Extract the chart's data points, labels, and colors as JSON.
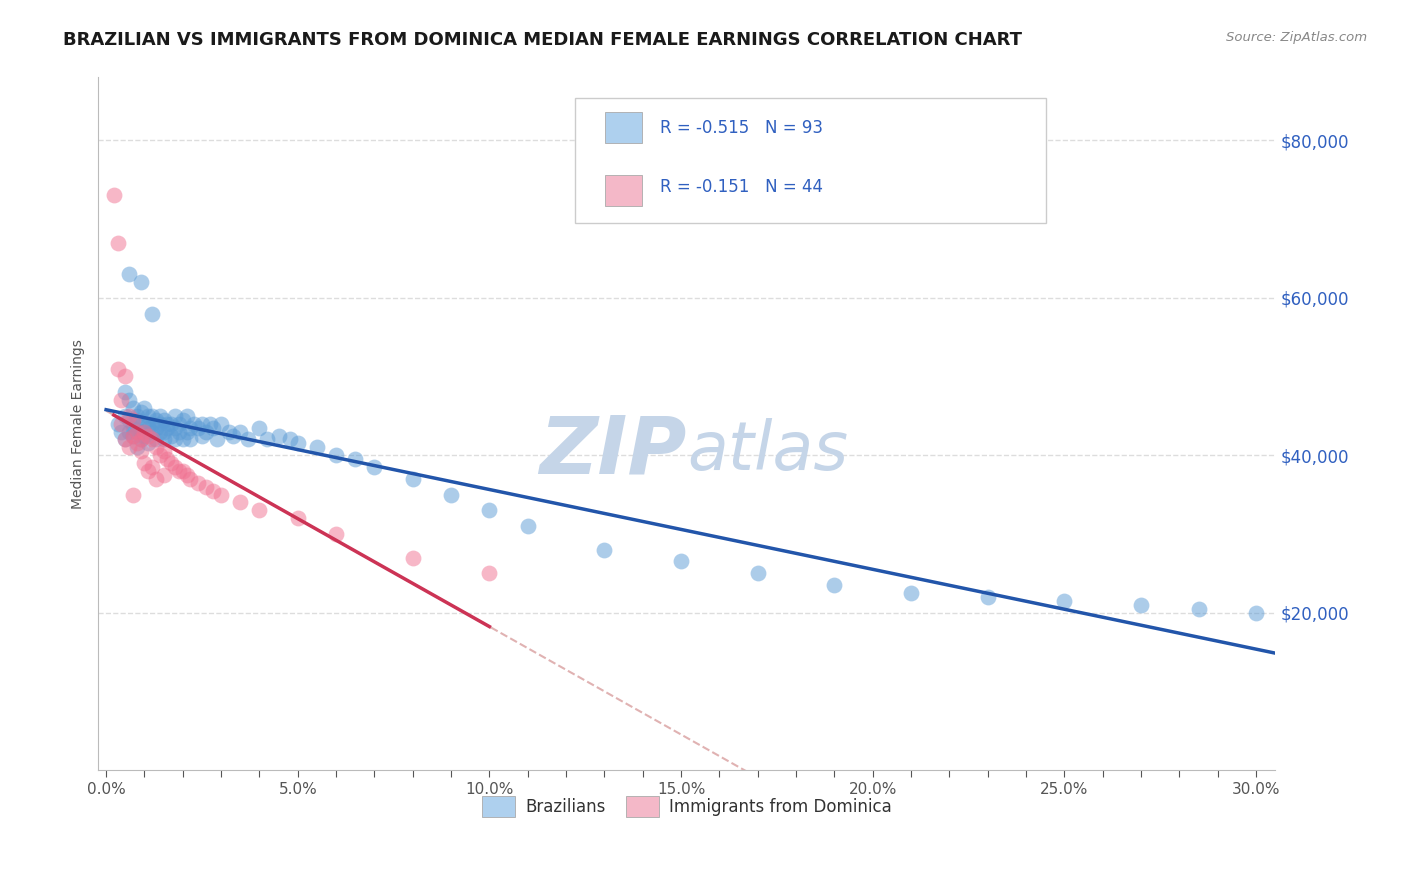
{
  "title": "BRAZILIAN VS IMMIGRANTS FROM DOMINICA MEDIAN FEMALE EARNINGS CORRELATION CHART",
  "source": "Source: ZipAtlas.com",
  "ylabel": "Median Female Earnings",
  "ytick_labels": [
    "$20,000",
    "$40,000",
    "$60,000",
    "$80,000"
  ],
  "ytick_vals": [
    20000,
    40000,
    60000,
    80000
  ],
  "xlim": [
    -0.002,
    0.305
  ],
  "ylim": [
    0,
    88000
  ],
  "legend_labels": [
    "Brazilians",
    "Immigrants from Dominica"
  ],
  "legend_box1_color": "#aed0ee",
  "legend_box2_color": "#f4b8c8",
  "R1": "-0.515",
  "N1": "93",
  "R2": "-0.151",
  "N2": "44",
  "blue_color": "#5b9bd5",
  "pink_color": "#f07090",
  "trendline1_color": "#2255aa",
  "trendline2_color": "#cc3355",
  "dashed_line_color": "#ddaaaa",
  "watermark_zip_color": "#c5d5e8",
  "watermark_atlas_color": "#c5d5e8",
  "title_fontsize": 13,
  "axis_label_fontsize": 10,
  "tick_fontsize": 10,
  "legend_fontsize": 12,
  "background_color": "#ffffff",
  "grid_color": "#dddddd",
  "blue_label_color": "#3060c0",
  "brazilians_x": [
    0.003,
    0.004,
    0.005,
    0.005,
    0.005,
    0.006,
    0.006,
    0.006,
    0.007,
    0.007,
    0.007,
    0.007,
    0.008,
    0.008,
    0.008,
    0.008,
    0.009,
    0.009,
    0.009,
    0.01,
    0.01,
    0.01,
    0.01,
    0.011,
    0.011,
    0.011,
    0.011,
    0.012,
    0.012,
    0.012,
    0.013,
    0.013,
    0.013,
    0.014,
    0.014,
    0.014,
    0.015,
    0.015,
    0.015,
    0.016,
    0.016,
    0.017,
    0.017,
    0.018,
    0.018,
    0.018,
    0.019,
    0.019,
    0.02,
    0.02,
    0.021,
    0.021,
    0.022,
    0.022,
    0.023,
    0.024,
    0.025,
    0.025,
    0.026,
    0.027,
    0.028,
    0.029,
    0.03,
    0.032,
    0.033,
    0.035,
    0.037,
    0.04,
    0.042,
    0.045,
    0.048,
    0.05,
    0.055,
    0.06,
    0.065,
    0.07,
    0.08,
    0.09,
    0.1,
    0.11,
    0.13,
    0.15,
    0.17,
    0.19,
    0.21,
    0.23,
    0.25,
    0.27,
    0.285,
    0.3,
    0.006,
    0.009,
    0.012
  ],
  "brazilians_y": [
    44000,
    43000,
    45000,
    42000,
    48000,
    44500,
    43000,
    47000,
    43500,
    44000,
    42500,
    46000,
    45000,
    43000,
    44500,
    41000,
    43000,
    45500,
    42000,
    44000,
    46000,
    43000,
    42500,
    44000,
    45000,
    43500,
    41500,
    44000,
    43000,
    45000,
    43500,
    44500,
    42000,
    44000,
    43000,
    45000,
    44500,
    43000,
    42000,
    44000,
    43500,
    44000,
    42500,
    43500,
    45000,
    42000,
    44000,
    43000,
    44500,
    42000,
    43000,
    45000,
    43500,
    42000,
    44000,
    43500,
    44000,
    42500,
    43000,
    44000,
    43500,
    42000,
    44000,
    43000,
    42500,
    43000,
    42000,
    43500,
    42000,
    42500,
    42000,
    41500,
    41000,
    40000,
    39500,
    38500,
    37000,
    35000,
    33000,
    31000,
    28000,
    26500,
    25000,
    23500,
    22500,
    22000,
    21500,
    21000,
    20500,
    20000,
    63000,
    62000,
    58000
  ],
  "dominica_x": [
    0.002,
    0.003,
    0.004,
    0.004,
    0.005,
    0.005,
    0.006,
    0.006,
    0.007,
    0.007,
    0.008,
    0.008,
    0.009,
    0.009,
    0.01,
    0.01,
    0.011,
    0.011,
    0.012,
    0.012,
    0.013,
    0.013,
    0.014,
    0.015,
    0.015,
    0.016,
    0.017,
    0.018,
    0.019,
    0.02,
    0.021,
    0.022,
    0.024,
    0.026,
    0.028,
    0.03,
    0.035,
    0.04,
    0.05,
    0.06,
    0.08,
    0.1,
    0.003,
    0.007
  ],
  "dominica_y": [
    73000,
    51000,
    47000,
    44000,
    50000,
    42000,
    45000,
    41000,
    44500,
    42500,
    43000,
    41500,
    42000,
    40500,
    43000,
    39000,
    42500,
    38000,
    42000,
    38500,
    41000,
    37000,
    40000,
    40500,
    37500,
    39500,
    39000,
    38500,
    38000,
    38000,
    37500,
    37000,
    36500,
    36000,
    35500,
    35000,
    34000,
    33000,
    32000,
    30000,
    27000,
    25000,
    67000,
    35000
  ]
}
